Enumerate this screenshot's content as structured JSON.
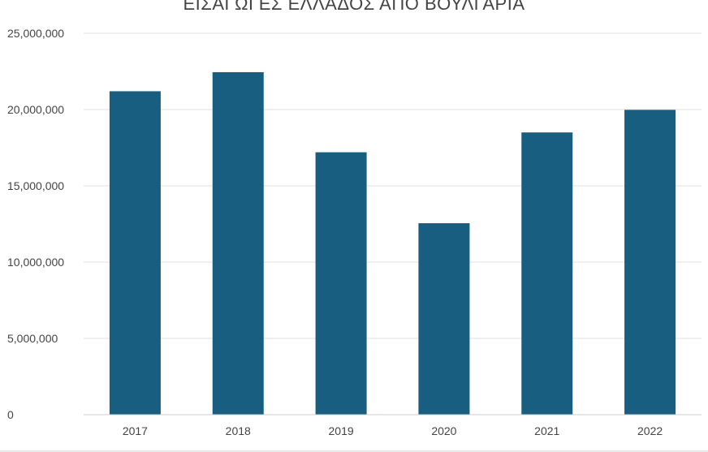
{
  "chart_data": {
    "type": "bar",
    "title": "ΕΙΣΑΓΩΓΕΣ ΕΛΛΑΔΟΣ ΑΠΟ ΒΟΥΛΓΑΡΙΑ",
    "xlabel": "",
    "ylabel": "",
    "categories": [
      "2017",
      "2018",
      "2019",
      "2020",
      "2021",
      "2022"
    ],
    "values": [
      21200000,
      22450000,
      17200000,
      12550000,
      18500000,
      19980000
    ],
    "ylim": [
      0,
      25000000
    ],
    "yticks": [
      0,
      5000000,
      10000000,
      15000000,
      20000000,
      25000000
    ],
    "ytick_labels": [
      "0",
      "5,000,000",
      "10,000,000",
      "15,000,000",
      "20,000,000",
      "25,000,000"
    ],
    "grid": true,
    "legend": "none",
    "bar_color": "#185e80"
  }
}
